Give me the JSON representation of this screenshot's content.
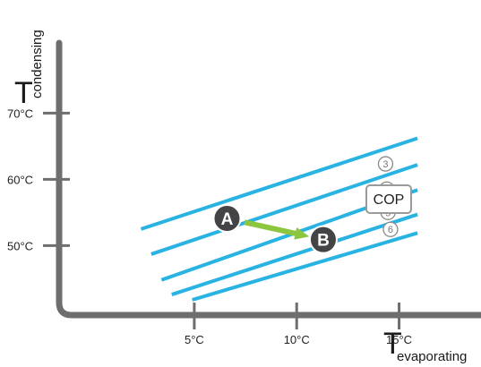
{
  "chart_data": {
    "type": "line",
    "xlabel": "T",
    "xlabel_sub": "evaporating",
    "ylabel": "T",
    "ylabel_sub": "condensing",
    "x_ticks": [
      {
        "value": 5,
        "label": "5°C"
      },
      {
        "value": 10,
        "label": "10°C"
      },
      {
        "value": 15,
        "label": "15°C"
      }
    ],
    "y_ticks": [
      {
        "value": 70,
        "label": "70°C"
      },
      {
        "value": 60,
        "label": "60°C"
      },
      {
        "value": 50,
        "label": "50°C"
      }
    ],
    "xlim": [
      -1.6,
      19
    ],
    "ylim": [
      39.5,
      80.6
    ],
    "grid": false,
    "line_color": "#29b3e3",
    "axis_color": "#6e6e6e",
    "series": [
      {
        "label": "",
        "points": [
          [
            2.4,
            52.5
          ],
          [
            15.9,
            66.2
          ]
        ]
      },
      {
        "label": "3",
        "points": [
          [
            2.9,
            48.7
          ],
          [
            15.9,
            62.2
          ]
        ]
      },
      {
        "label": "4",
        "points": [
          [
            3.4,
            44.8
          ],
          [
            15.9,
            58.4
          ]
        ]
      },
      {
        "label": "5",
        "points": [
          [
            3.9,
            42.6
          ],
          [
            15.9,
            54.7
          ]
        ]
      },
      {
        "label": "6",
        "points": [
          [
            4.9,
            41.8
          ],
          [
            15.9,
            51.9
          ]
        ]
      }
    ],
    "points": [
      {
        "label": "A",
        "x": 6.6,
        "y": 54.1
      },
      {
        "label": "B",
        "x": 11.3,
        "y": 50.9
      }
    ],
    "arrow": {
      "from": "A",
      "to": "B",
      "color": "#8cc63f"
    },
    "legend_box": {
      "text": "COP"
    },
    "point_color": "#444446"
  }
}
